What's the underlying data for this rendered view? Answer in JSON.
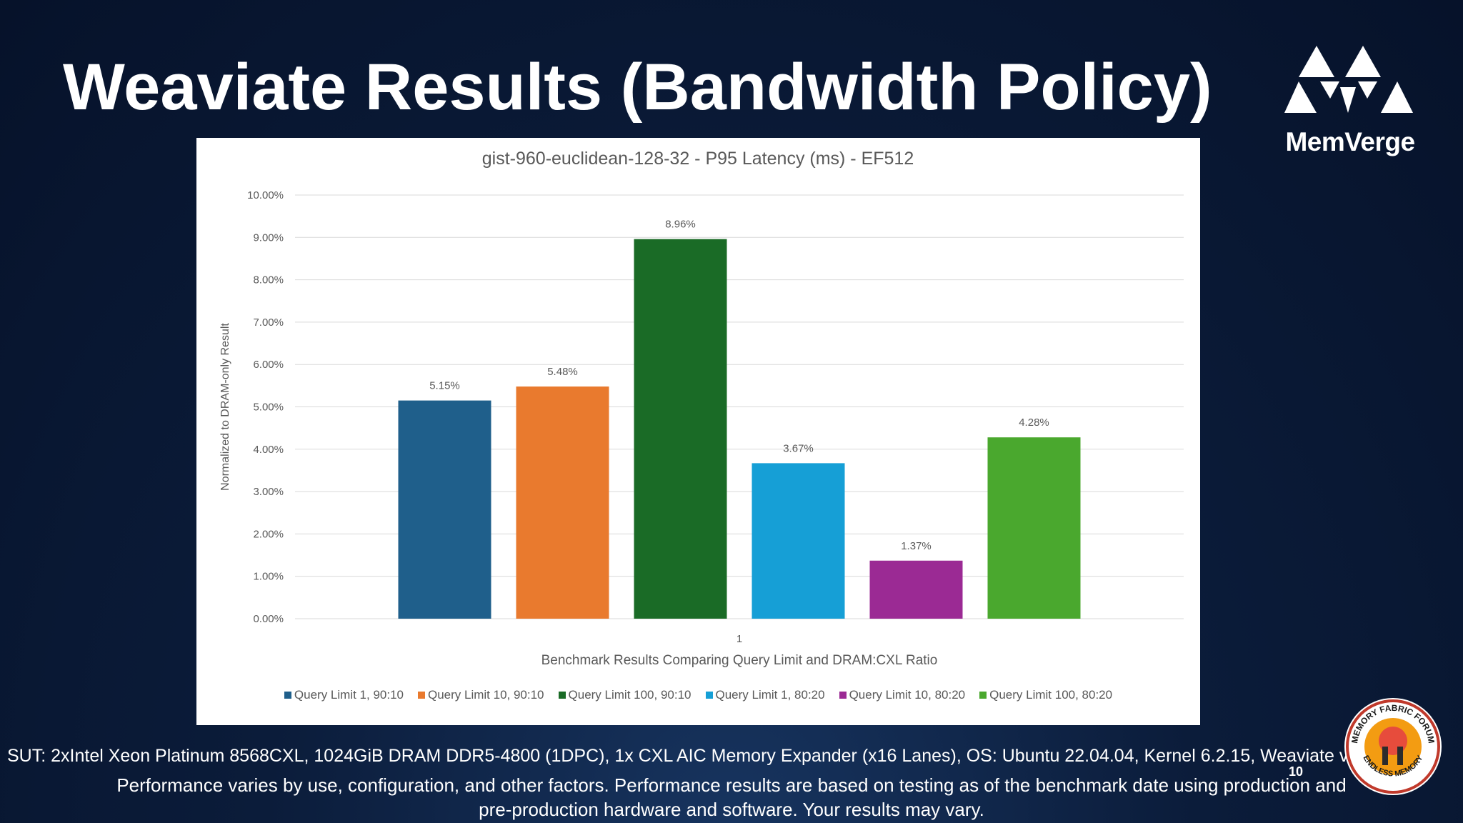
{
  "slide": {
    "title": "Weaviate Results (Bandwidth Policy)",
    "page_number": "10",
    "footer_sut": "SUT: 2xIntel Xeon Platinum 8568CXL, 1024GiB DRAM DDR5-4800 (1DPC), 1x CXL AIC Memory Expander (x16 Lanes), OS: Ubuntu 22.04.04, Kernel 6.2.15, Weaviate v1.23.7",
    "footer_perf_line1": "Performance varies by use, configuration, and other factors. Performance results are based on testing as of the benchmark date using production and",
    "footer_perf_line2": "pre-production hardware and software. Your results may vary."
  },
  "logo": {
    "text": "MemVerge",
    "icon": "triangles-logo-icon"
  },
  "badge": {
    "text_top": "MEMORY FABRIC FORUM",
    "text_bottom": "ENDLESS MEMORY",
    "icon": "memory-fabric-forum-badge-icon"
  },
  "chart_data": {
    "type": "bar",
    "title": "gist-960-euclidean-128-32 - P95 Latency (ms) - EF512",
    "xlabel": "Benchmark Results Comparing Query Limit and DRAM:CXL Ratio",
    "ylabel": "Normalized to DRAM-only Result",
    "categories": [
      "1"
    ],
    "ylim": [
      0,
      10
    ],
    "yticks": [
      "0.00%",
      "1.00%",
      "2.00%",
      "3.00%",
      "4.00%",
      "5.00%",
      "6.00%",
      "7.00%",
      "8.00%",
      "9.00%",
      "10.00%"
    ],
    "grid": true,
    "legend_position": "bottom",
    "series": [
      {
        "name": "Query Limit 1, 90:10",
        "values": [
          5.15
        ],
        "label": "5.15%",
        "color": "#1f5f8b"
      },
      {
        "name": "Query Limit 10, 90:10",
        "values": [
          5.48
        ],
        "label": "5.48%",
        "color": "#e97a2e"
      },
      {
        "name": "Query Limit 100, 90:10",
        "values": [
          8.96
        ],
        "label": "8.96%",
        "color": "#1a6b26"
      },
      {
        "name": "Query Limit 1, 80:20",
        "values": [
          3.67
        ],
        "label": "3.67%",
        "color": "#169fd6"
      },
      {
        "name": "Query Limit 10, 80:20",
        "values": [
          1.37
        ],
        "label": "1.37%",
        "color": "#9b2a94"
      },
      {
        "name": "Query Limit 100, 80:20",
        "values": [
          4.28
        ],
        "label": "4.28%",
        "color": "#4aa82e"
      }
    ]
  }
}
